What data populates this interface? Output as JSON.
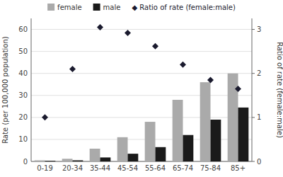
{
  "chart_data": {
    "type": "bar",
    "categories": [
      "0-19",
      "20-34",
      "35-44",
      "45-54",
      "55-64",
      "65-74",
      "75-84",
      "85+"
    ],
    "series": [
      {
        "name": "female",
        "color": "#aaaaaa",
        "values": [
          0.5,
          1.2,
          5.8,
          11.0,
          18.0,
          28.0,
          36.0,
          40.0
        ]
      },
      {
        "name": "male",
        "color": "#1a1a1a",
        "values": [
          0.3,
          0.5,
          1.8,
          3.5,
          6.5,
          12.0,
          19.0,
          24.5
        ]
      },
      {
        "name": "◆ Ratio of rate (female:male)",
        "type": "scatter",
        "marker": "diamond",
        "axis": "y2",
        "color": "#1a1a2e",
        "values": [
          1.0,
          2.1,
          3.05,
          2.92,
          2.62,
          2.2,
          1.85,
          1.65
        ]
      }
    ],
    "ylabel": "Rate (per 100,000 population)",
    "y2label": "Ratio of rate (female:male)",
    "ylim": [
      0,
      65
    ],
    "yticks": [
      0,
      10,
      20,
      30,
      40,
      50,
      60
    ],
    "y2lim": [
      0,
      3.25
    ],
    "y2ticks": [
      0,
      1,
      2,
      3
    ],
    "grid": true,
    "legend": "top"
  }
}
